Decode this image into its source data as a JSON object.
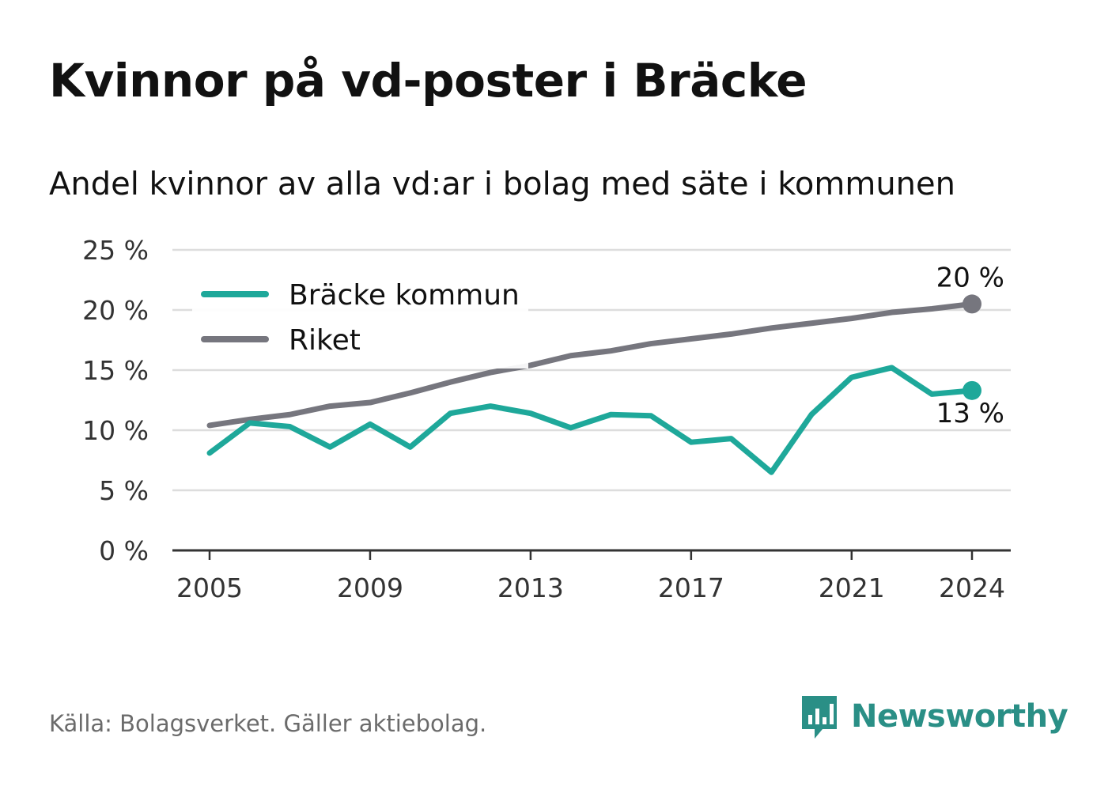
{
  "title": "Kvinnor på vd-poster i Bräcke",
  "subtitle": "Andel kvinnor av alla vd:ar i bolag med säte i kommunen",
  "source": "Källa: Bolagsverket. Gäller aktiebolag.",
  "brand": {
    "name": "Newsworthy",
    "icon": "newsworthy-logo-icon",
    "color": "#2a8f86"
  },
  "chart_data": {
    "type": "line",
    "x": [
      2005,
      2006,
      2007,
      2008,
      2009,
      2010,
      2011,
      2012,
      2013,
      2014,
      2015,
      2016,
      2017,
      2018,
      2019,
      2020,
      2021,
      2022,
      2023,
      2024
    ],
    "x_ticks": [
      "2005",
      "2009",
      "2013",
      "2017",
      "2021",
      "2024"
    ],
    "y_ticks": [
      "0 %",
      "5 %",
      "10 %",
      "15 %",
      "20 %",
      "25 %"
    ],
    "ylim": [
      0,
      25
    ],
    "grid": true,
    "legend_position": "top-left",
    "series": [
      {
        "name": "Bräcke kommun",
        "color": "#1ea89a",
        "values": [
          8.1,
          10.6,
          10.3,
          8.6,
          10.5,
          8.6,
          11.4,
          12.0,
          11.4,
          10.2,
          11.3,
          11.2,
          9.0,
          9.3,
          6.5,
          11.3,
          14.4,
          15.2,
          13.0,
          13.3
        ],
        "end_label": "13 %"
      },
      {
        "name": "Riket",
        "color": "#76767e",
        "values": [
          10.4,
          10.9,
          11.3,
          12.0,
          12.3,
          13.1,
          14.0,
          14.8,
          15.4,
          16.2,
          16.6,
          17.2,
          17.6,
          18.0,
          18.5,
          18.9,
          19.3,
          19.8,
          20.1,
          20.5
        ],
        "end_label": "20 %"
      }
    ]
  }
}
